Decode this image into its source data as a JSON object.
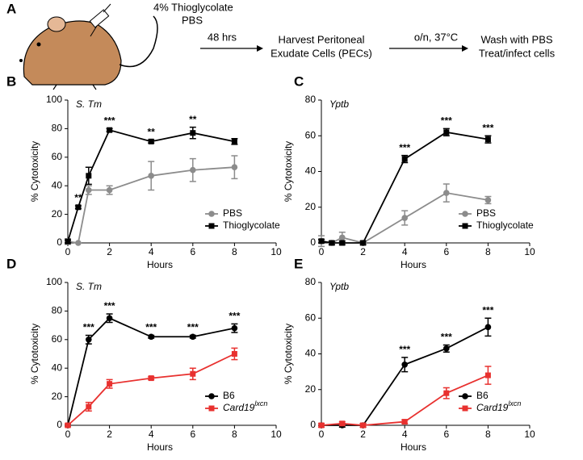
{
  "panel_a": {
    "label": "A",
    "injection_line1": "4% Thioglycolate",
    "injection_line2": "PBS",
    "step1": "48 hrs",
    "step2_line1": "Harvest Peritoneal",
    "step2_line2": "Exudate Cells (PECs)",
    "step3": "o/n, 37°C",
    "step4_line1": "Wash with PBS",
    "step4_line2": "Treat/infect cells"
  },
  "chart_data": [
    {
      "type": "line",
      "panel": "B",
      "title": "S. Tm",
      "xlabel": "Hours",
      "ylabel": "% Cytotoxicity",
      "x": [
        0,
        0.5,
        1,
        2,
        4,
        6,
        8
      ],
      "xlim": [
        0,
        10
      ],
      "xticks": [
        0,
        2,
        4,
        6,
        8,
        10
      ],
      "ylim": [
        0,
        100
      ],
      "yticks": [
        0,
        20,
        40,
        60,
        80,
        100
      ],
      "series": [
        {
          "name": "PBS",
          "color": "#8c8c8c",
          "marker": "circle",
          "values": [
            1,
            0,
            37,
            37,
            47,
            51,
            53
          ],
          "errors": [
            2,
            0,
            3,
            3,
            10,
            8,
            8
          ]
        },
        {
          "name": "Thioglycolate",
          "color": "#000000",
          "marker": "square",
          "values": [
            1,
            25,
            47,
            79,
            71,
            77,
            71
          ],
          "errors": [
            1,
            1,
            6,
            1,
            1,
            4,
            2
          ]
        }
      ],
      "annotations": [
        {
          "x": 0.5,
          "text": "**"
        },
        {
          "x": 2,
          "text": "***"
        },
        {
          "x": 4,
          "text": "**"
        },
        {
          "x": 6,
          "text": "**"
        }
      ]
    },
    {
      "type": "line",
      "panel": "C",
      "title": "Yptb",
      "xlabel": "Hours",
      "ylabel": "% Cytotoxicity",
      "x": [
        0,
        0.5,
        1,
        2,
        4,
        6,
        8
      ],
      "xlim": [
        0,
        10
      ],
      "xticks": [
        0,
        2,
        4,
        6,
        8,
        10
      ],
      "ylim": [
        0,
        80
      ],
      "yticks": [
        0,
        20,
        40,
        60,
        80
      ],
      "series": [
        {
          "name": "PBS",
          "color": "#8c8c8c",
          "marker": "circle",
          "values": [
            1,
            0,
            3,
            0,
            14,
            28,
            24
          ],
          "errors": [
            3,
            1,
            3,
            1,
            4,
            5,
            2
          ]
        },
        {
          "name": "Thioglycolate",
          "color": "#000000",
          "marker": "square",
          "values": [
            1,
            0,
            0,
            0,
            47,
            62,
            58
          ],
          "errors": [
            1,
            1,
            1,
            1,
            2,
            2,
            2
          ]
        }
      ],
      "annotations": [
        {
          "x": 4,
          "text": "***"
        },
        {
          "x": 6,
          "text": "***"
        },
        {
          "x": 8,
          "text": "***"
        }
      ]
    },
    {
      "type": "line",
      "panel": "D",
      "title": "S. Tm",
      "xlabel": "Hours",
      "ylabel": "% Cytotoxicity",
      "x": [
        0,
        1,
        2,
        4,
        6,
        8
      ],
      "xlim": [
        0,
        10
      ],
      "xticks": [
        0,
        2,
        4,
        6,
        8,
        10
      ],
      "ylim": [
        0,
        100
      ],
      "yticks": [
        0,
        20,
        40,
        60,
        80,
        100
      ],
      "series": [
        {
          "name": "B6",
          "color": "#000000",
          "marker": "circle",
          "values": [
            0,
            60,
            75,
            62,
            62,
            68
          ],
          "errors": [
            1,
            3,
            3,
            1,
            1,
            3
          ]
        },
        {
          "name": "Card19",
          "name_superscript": "lxcn",
          "color": "#e8312f",
          "marker": "square",
          "values": [
            0,
            13,
            29,
            33,
            36,
            50
          ],
          "errors": [
            1,
            3,
            3,
            1,
            4,
            4
          ]
        }
      ],
      "annotations": [
        {
          "x": 1,
          "text": "***"
        },
        {
          "x": 2,
          "text": "***"
        },
        {
          "x": 4,
          "text": "***"
        },
        {
          "x": 6,
          "text": "***"
        },
        {
          "x": 8,
          "text": "***"
        }
      ]
    },
    {
      "type": "line",
      "panel": "E",
      "title": "Yptb",
      "xlabel": "Hours",
      "ylabel": "% Cytotoxicity",
      "x": [
        0,
        1,
        2,
        4,
        6,
        8
      ],
      "xlim": [
        0,
        10
      ],
      "xticks": [
        0,
        2,
        4,
        6,
        8,
        10
      ],
      "ylim": [
        0,
        80
      ],
      "yticks": [
        0,
        20,
        40,
        60,
        80
      ],
      "series": [
        {
          "name": "B6",
          "color": "#000000",
          "marker": "circle",
          "values": [
            0,
            0,
            0,
            34,
            43,
            55
          ],
          "errors": [
            1,
            1,
            1,
            4,
            2,
            5
          ]
        },
        {
          "name": "Card19",
          "name_superscript": "lxcn",
          "color": "#e8312f",
          "marker": "square",
          "values": [
            0,
            1,
            0,
            2,
            18,
            28
          ],
          "errors": [
            1,
            1,
            1,
            1,
            3,
            5
          ]
        }
      ],
      "annotations": [
        {
          "x": 4,
          "text": "***"
        },
        {
          "x": 6,
          "text": "***"
        },
        {
          "x": 8,
          "text": "***"
        }
      ]
    }
  ]
}
